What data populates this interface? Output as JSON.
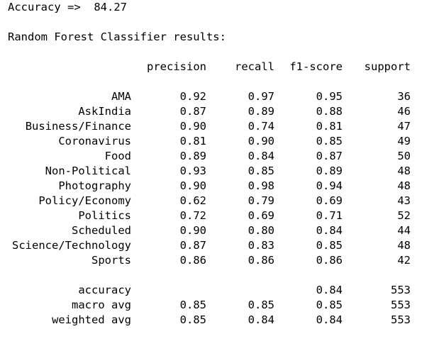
{
  "accuracy_line": {
    "label": "Accuracy =>",
    "value": "84.27"
  },
  "report_title": "Random Forest Classifier results:",
  "headers": {
    "precision": "precision",
    "recall": "recall",
    "f1": "f1-score",
    "support": "support"
  },
  "rows": [
    {
      "label": "AMA",
      "precision": "0.92",
      "recall": "0.97",
      "f1": "0.95",
      "support": "36"
    },
    {
      "label": "AskIndia",
      "precision": "0.87",
      "recall": "0.89",
      "f1": "0.88",
      "support": "46"
    },
    {
      "label": "Business/Finance",
      "precision": "0.90",
      "recall": "0.74",
      "f1": "0.81",
      "support": "47"
    },
    {
      "label": "Coronavirus",
      "precision": "0.81",
      "recall": "0.90",
      "f1": "0.85",
      "support": "49"
    },
    {
      "label": "Food",
      "precision": "0.89",
      "recall": "0.84",
      "f1": "0.87",
      "support": "50"
    },
    {
      "label": "Non-Political",
      "precision": "0.93",
      "recall": "0.85",
      "f1": "0.89",
      "support": "48"
    },
    {
      "label": "Photography",
      "precision": "0.90",
      "recall": "0.98",
      "f1": "0.94",
      "support": "48"
    },
    {
      "label": "Policy/Economy",
      "precision": "0.62",
      "recall": "0.79",
      "f1": "0.69",
      "support": "43"
    },
    {
      "label": "Politics",
      "precision": "0.72",
      "recall": "0.69",
      "f1": "0.71",
      "support": "52"
    },
    {
      "label": "Scheduled",
      "precision": "0.90",
      "recall": "0.80",
      "f1": "0.84",
      "support": "44"
    },
    {
      "label": "Science/Technology",
      "precision": "0.87",
      "recall": "0.83",
      "f1": "0.85",
      "support": "48"
    },
    {
      "label": "Sports",
      "precision": "0.86",
      "recall": "0.86",
      "f1": "0.86",
      "support": "42"
    }
  ],
  "summary": [
    {
      "label": "accuracy",
      "precision": "",
      "recall": "",
      "f1": "0.84",
      "support": "553"
    },
    {
      "label": "macro avg",
      "precision": "0.85",
      "recall": "0.85",
      "f1": "0.85",
      "support": "553"
    },
    {
      "label": "weighted avg",
      "precision": "0.85",
      "recall": "0.84",
      "f1": "0.84",
      "support": "553"
    }
  ]
}
